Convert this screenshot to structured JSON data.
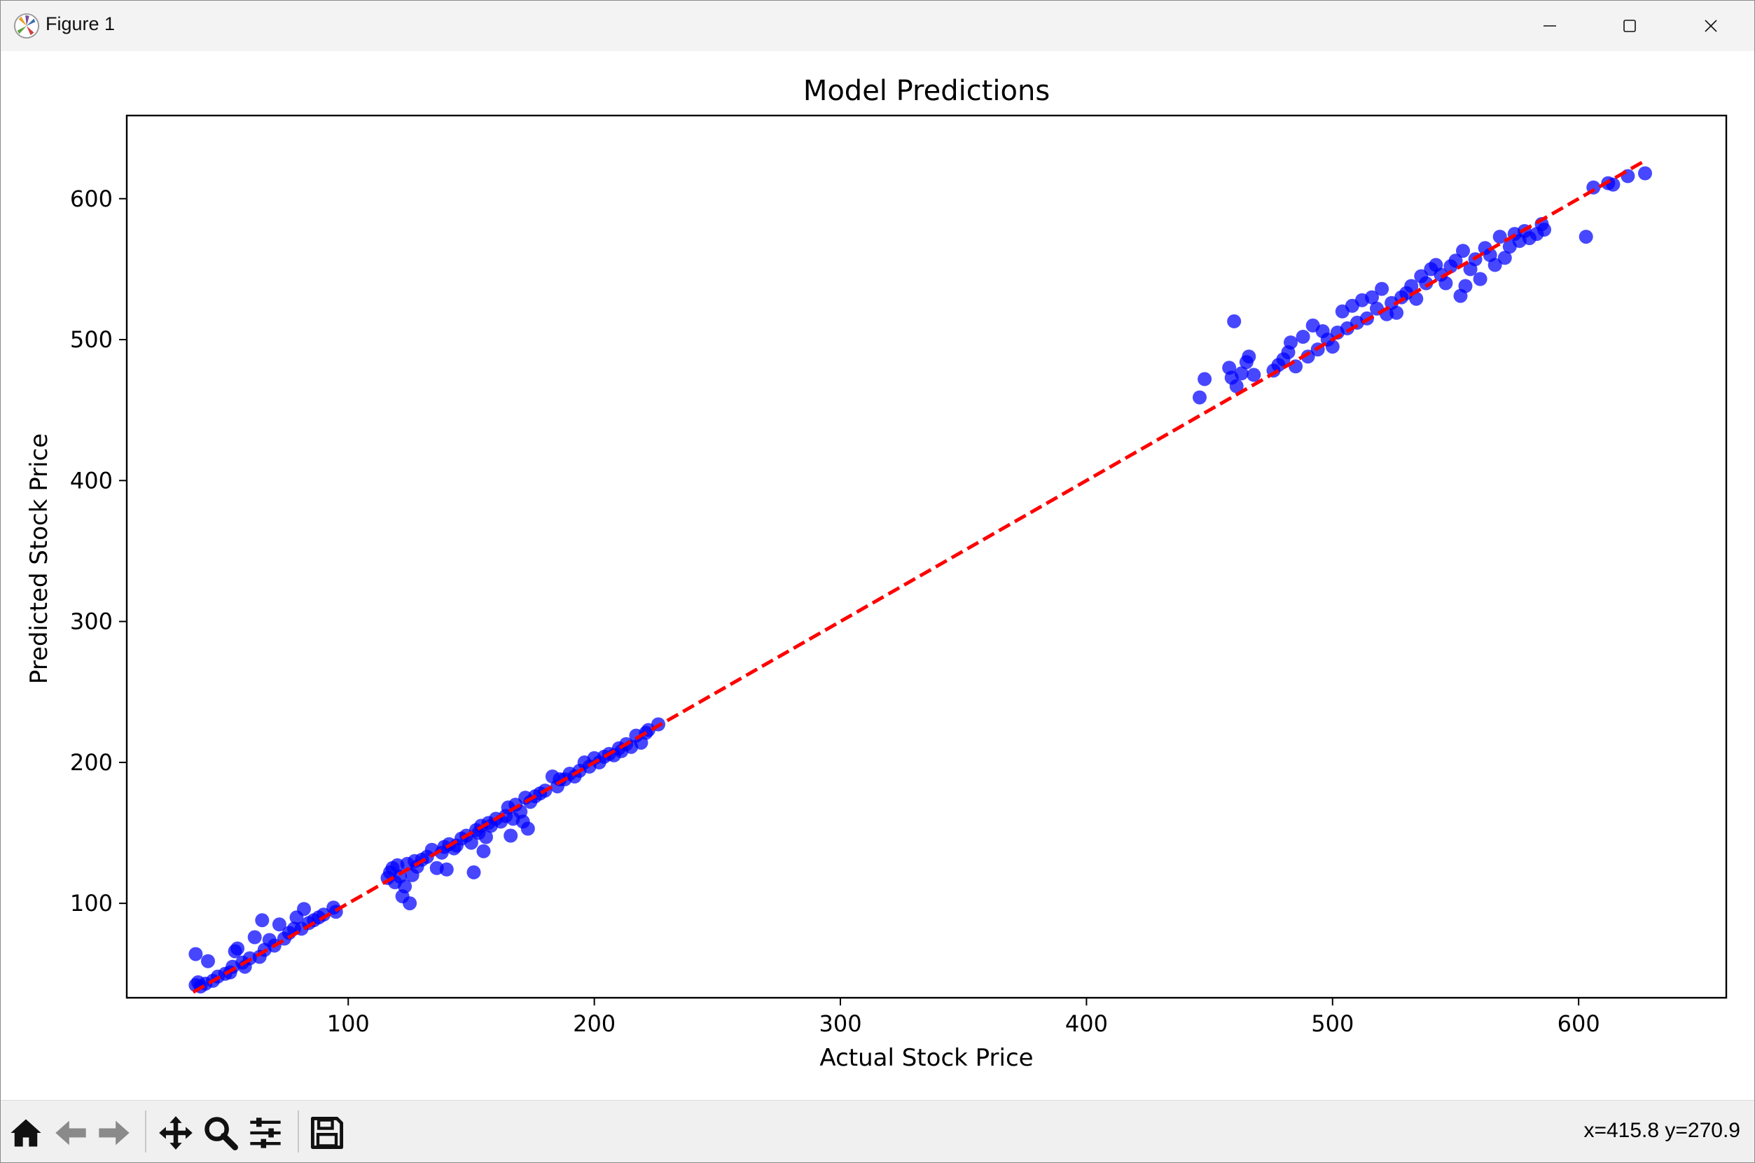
{
  "window": {
    "title": "Figure 1",
    "icons": [
      "matplotlib-logo-icon",
      "minimize-icon",
      "maximize-icon",
      "close-icon"
    ]
  },
  "toolbar": {
    "items": [
      "home-icon",
      "back-arrow-icon",
      "forward-arrow-icon",
      "pan-move-icon",
      "zoom-magnifier-icon",
      "configure-subplots-icon",
      "save-disk-icon"
    ],
    "coords": "x=415.8 y=270.9"
  },
  "colors": {
    "points": "#0000ff",
    "reference_line": "#ff0000",
    "axes": "#000000"
  },
  "chart_data": {
    "type": "scatter",
    "title": "Model Predictions",
    "xlabel": "Actual Stock Price",
    "ylabel": "Predicted Stock Price",
    "xlim": [
      10,
      660
    ],
    "ylim": [
      33,
      659
    ],
    "xticks": [
      100,
      200,
      300,
      400,
      500,
      600
    ],
    "yticks": [
      100,
      200,
      300,
      400,
      500,
      600
    ],
    "grid": false,
    "legend": "none",
    "reference_line": {
      "style": "dashed",
      "x": [
        37,
        627
      ],
      "y": [
        37,
        627
      ]
    },
    "points": [
      [
        38,
        42
      ],
      [
        38,
        64
      ],
      [
        39,
        44
      ],
      [
        40,
        41
      ],
      [
        42,
        43
      ],
      [
        43,
        59
      ],
      [
        45,
        45
      ],
      [
        47,
        48
      ],
      [
        50,
        50
      ],
      [
        52,
        51
      ],
      [
        53,
        55
      ],
      [
        54,
        66
      ],
      [
        55,
        68
      ],
      [
        57,
        58
      ],
      [
        58,
        55
      ],
      [
        60,
        61
      ],
      [
        62,
        76
      ],
      [
        64,
        62
      ],
      [
        65,
        88
      ],
      [
        66,
        67
      ],
      [
        68,
        74
      ],
      [
        70,
        70
      ],
      [
        72,
        85
      ],
      [
        74,
        75
      ],
      [
        76,
        79
      ],
      [
        78,
        82
      ],
      [
        79,
        90
      ],
      [
        81,
        82
      ],
      [
        82,
        96
      ],
      [
        84,
        86
      ],
      [
        86,
        88
      ],
      [
        88,
        90
      ],
      [
        90,
        92
      ],
      [
        94,
        97
      ],
      [
        95,
        94
      ],
      [
        116,
        118
      ],
      [
        117,
        122
      ],
      [
        118,
        125
      ],
      [
        119,
        115
      ],
      [
        120,
        127
      ],
      [
        121,
        119
      ],
      [
        122,
        105
      ],
      [
        123,
        112
      ],
      [
        124,
        128
      ],
      [
        125,
        100
      ],
      [
        126,
        120
      ],
      [
        127,
        130
      ],
      [
        128,
        126
      ],
      [
        130,
        131
      ],
      [
        132,
        133
      ],
      [
        134,
        138
      ],
      [
        136,
        125
      ],
      [
        138,
        136
      ],
      [
        139,
        140
      ],
      [
        140,
        124
      ],
      [
        141,
        142
      ],
      [
        143,
        139
      ],
      [
        144,
        141
      ],
      [
        146,
        146
      ],
      [
        148,
        148
      ],
      [
        150,
        143
      ],
      [
        151,
        122
      ],
      [
        152,
        152
      ],
      [
        153,
        150
      ],
      [
        154,
        155
      ],
      [
        155,
        137
      ],
      [
        156,
        147
      ],
      [
        157,
        157
      ],
      [
        158,
        155
      ],
      [
        160,
        160
      ],
      [
        162,
        158
      ],
      [
        164,
        162
      ],
      [
        165,
        168
      ],
      [
        166,
        148
      ],
      [
        167,
        160
      ],
      [
        168,
        170
      ],
      [
        170,
        165
      ],
      [
        171,
        158
      ],
      [
        172,
        175
      ],
      [
        173,
        153
      ],
      [
        174,
        172
      ],
      [
        176,
        176
      ],
      [
        178,
        178
      ],
      [
        180,
        180
      ],
      [
        183,
        190
      ],
      [
        185,
        183
      ],
      [
        186,
        188
      ],
      [
        188,
        188
      ],
      [
        190,
        192
      ],
      [
        192,
        190
      ],
      [
        194,
        194
      ],
      [
        196,
        200
      ],
      [
        198,
        197
      ],
      [
        200,
        203
      ],
      [
        202,
        200
      ],
      [
        204,
        204
      ],
      [
        206,
        206
      ],
      [
        208,
        205
      ],
      [
        210,
        210
      ],
      [
        211,
        208
      ],
      [
        213,
        213
      ],
      [
        215,
        211
      ],
      [
        217,
        219
      ],
      [
        219,
        214
      ],
      [
        221,
        221
      ],
      [
        222,
        223
      ],
      [
        226,
        227
      ],
      [
        446,
        459
      ],
      [
        448,
        472
      ],
      [
        458,
        480
      ],
      [
        459,
        473
      ],
      [
        460,
        513
      ],
      [
        461,
        467
      ],
      [
        463,
        476
      ],
      [
        465,
        484
      ],
      [
        466,
        488
      ],
      [
        468,
        475
      ],
      [
        476,
        478
      ],
      [
        478,
        482
      ],
      [
        480,
        486
      ],
      [
        482,
        491
      ],
      [
        483,
        498
      ],
      [
        485,
        481
      ],
      [
        488,
        502
      ],
      [
        490,
        488
      ],
      [
        492,
        510
      ],
      [
        494,
        493
      ],
      [
        496,
        506
      ],
      [
        498,
        500
      ],
      [
        500,
        495
      ],
      [
        502,
        505
      ],
      [
        504,
        520
      ],
      [
        506,
        508
      ],
      [
        508,
        524
      ],
      [
        510,
        512
      ],
      [
        512,
        528
      ],
      [
        514,
        515
      ],
      [
        516,
        530
      ],
      [
        518,
        522
      ],
      [
        520,
        536
      ],
      [
        522,
        518
      ],
      [
        524,
        526
      ],
      [
        526,
        519
      ],
      [
        528,
        530
      ],
      [
        530,
        533
      ],
      [
        532,
        538
      ],
      [
        534,
        529
      ],
      [
        536,
        545
      ],
      [
        538,
        540
      ],
      [
        540,
        550
      ],
      [
        542,
        553
      ],
      [
        544,
        546
      ],
      [
        546,
        540
      ],
      [
        548,
        552
      ],
      [
        550,
        556
      ],
      [
        552,
        531
      ],
      [
        553,
        563
      ],
      [
        554,
        538
      ],
      [
        556,
        550
      ],
      [
        558,
        557
      ],
      [
        560,
        543
      ],
      [
        562,
        565
      ],
      [
        564,
        560
      ],
      [
        566,
        553
      ],
      [
        568,
        573
      ],
      [
        570,
        558
      ],
      [
        572,
        566
      ],
      [
        574,
        575
      ],
      [
        576,
        570
      ],
      [
        578,
        577
      ],
      [
        580,
        572
      ],
      [
        583,
        575
      ],
      [
        585,
        582
      ],
      [
        586,
        578
      ],
      [
        603,
        573
      ],
      [
        606,
        608
      ],
      [
        612,
        611
      ],
      [
        614,
        610
      ],
      [
        620,
        616
      ],
      [
        627,
        618
      ]
    ]
  }
}
